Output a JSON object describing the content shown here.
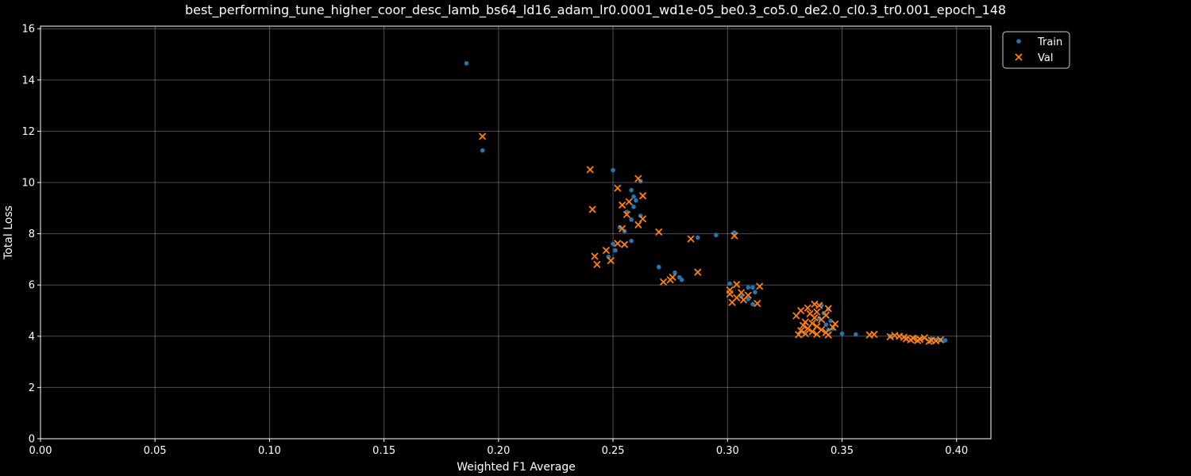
{
  "chart_data": {
    "type": "scatter",
    "title": "best_performing_tune_higher_coor_desc_lamb_bs64_ld16_adam_lr0.0001_wd1e-05_be0.3_co5.0_de2.0_cl0.3_tr0.001_epoch_148",
    "xlabel": "Weighted F1 Average",
    "ylabel": "Total Loss",
    "xlim": [
      0,
      0.415
    ],
    "ylim": [
      0,
      16.1
    ],
    "xticks": [
      "0.00",
      "0.05",
      "0.10",
      "0.15",
      "0.20",
      "0.25",
      "0.30",
      "0.35",
      "0.40"
    ],
    "yticks": [
      "0",
      "2",
      "4",
      "6",
      "8",
      "10",
      "12",
      "14",
      "16"
    ],
    "grid": true,
    "legend_position": "upper-right-outside",
    "series": [
      {
        "name": "Train",
        "marker": "circle",
        "color": "#1f77b4",
        "points": [
          [
            0.186,
            14.65
          ],
          [
            0.193,
            11.25
          ],
          [
            0.25,
            10.48
          ],
          [
            0.262,
            10.05
          ],
          [
            0.258,
            9.7
          ],
          [
            0.259,
            9.45
          ],
          [
            0.26,
            9.3
          ],
          [
            0.259,
            9.05
          ],
          [
            0.256,
            8.85
          ],
          [
            0.262,
            8.7
          ],
          [
            0.258,
            8.55
          ],
          [
            0.253,
            8.25
          ],
          [
            0.255,
            8.1
          ],
          [
            0.303,
            8.05
          ],
          [
            0.295,
            7.95
          ],
          [
            0.287,
            7.85
          ],
          [
            0.258,
            7.72
          ],
          [
            0.25,
            7.6
          ],
          [
            0.251,
            7.35
          ],
          [
            0.248,
            7.1
          ],
          [
            0.27,
            6.7
          ],
          [
            0.277,
            6.48
          ],
          [
            0.279,
            6.3
          ],
          [
            0.28,
            6.2
          ],
          [
            0.301,
            6.05
          ],
          [
            0.309,
            5.9
          ],
          [
            0.311,
            5.9
          ],
          [
            0.312,
            5.72
          ],
          [
            0.306,
            5.55
          ],
          [
            0.309,
            5.45
          ],
          [
            0.311,
            5.25
          ],
          [
            0.341,
            5.2
          ],
          [
            0.344,
            5.05
          ],
          [
            0.342,
            4.9
          ],
          [
            0.34,
            4.7
          ],
          [
            0.345,
            4.6
          ],
          [
            0.343,
            4.45
          ],
          [
            0.346,
            4.3
          ],
          [
            0.344,
            4.25
          ],
          [
            0.35,
            4.1
          ],
          [
            0.356,
            4.07
          ],
          [
            0.371,
            4.0
          ],
          [
            0.378,
            3.95
          ],
          [
            0.382,
            3.97
          ],
          [
            0.385,
            3.92
          ],
          [
            0.389,
            3.9
          ],
          [
            0.391,
            3.86
          ],
          [
            0.393,
            3.85
          ],
          [
            0.395,
            3.84
          ]
        ]
      },
      {
        "name": "Val",
        "marker": "x",
        "color": "#ff7f0e",
        "points": [
          [
            0.193,
            11.8
          ],
          [
            0.24,
            10.5
          ],
          [
            0.261,
            10.15
          ],
          [
            0.252,
            9.78
          ],
          [
            0.263,
            9.48
          ],
          [
            0.257,
            9.25
          ],
          [
            0.254,
            9.12
          ],
          [
            0.241,
            8.95
          ],
          [
            0.256,
            8.75
          ],
          [
            0.263,
            8.58
          ],
          [
            0.261,
            8.35
          ],
          [
            0.254,
            8.2
          ],
          [
            0.27,
            8.07
          ],
          [
            0.303,
            7.92
          ],
          [
            0.284,
            7.8
          ],
          [
            0.252,
            7.62
          ],
          [
            0.255,
            7.58
          ],
          [
            0.247,
            7.35
          ],
          [
            0.242,
            7.12
          ],
          [
            0.249,
            6.95
          ],
          [
            0.243,
            6.8
          ],
          [
            0.287,
            6.5
          ],
          [
            0.276,
            6.3
          ],
          [
            0.275,
            6.2
          ],
          [
            0.272,
            6.12
          ],
          [
            0.304,
            6.02
          ],
          [
            0.314,
            5.95
          ],
          [
            0.301,
            5.8
          ],
          [
            0.306,
            5.7
          ],
          [
            0.301,
            5.65
          ],
          [
            0.309,
            5.6
          ],
          [
            0.304,
            5.5
          ],
          [
            0.307,
            5.42
          ],
          [
            0.302,
            5.32
          ],
          [
            0.313,
            5.28
          ],
          [
            0.338,
            5.25
          ],
          [
            0.34,
            5.2
          ],
          [
            0.335,
            5.1
          ],
          [
            0.344,
            5.08
          ],
          [
            0.332,
            5.0
          ],
          [
            0.339,
            4.95
          ],
          [
            0.336,
            4.88
          ],
          [
            0.343,
            4.82
          ],
          [
            0.33,
            4.8
          ],
          [
            0.338,
            4.72
          ],
          [
            0.341,
            4.65
          ],
          [
            0.334,
            4.55
          ],
          [
            0.337,
            4.5
          ],
          [
            0.347,
            4.48
          ],
          [
            0.333,
            4.42
          ],
          [
            0.339,
            4.38
          ],
          [
            0.346,
            4.35
          ],
          [
            0.335,
            4.3
          ],
          [
            0.341,
            4.25
          ],
          [
            0.332,
            4.22
          ],
          [
            0.337,
            4.18
          ],
          [
            0.343,
            4.15
          ],
          [
            0.334,
            4.1
          ],
          [
            0.339,
            4.08
          ],
          [
            0.331,
            4.06
          ],
          [
            0.344,
            4.05
          ],
          [
            0.362,
            4.05
          ],
          [
            0.364,
            4.07
          ],
          [
            0.371,
            3.98
          ],
          [
            0.373,
            4.03
          ],
          [
            0.375,
            4.0
          ],
          [
            0.377,
            3.96
          ],
          [
            0.378,
            3.9
          ],
          [
            0.38,
            3.86
          ],
          [
            0.381,
            3.92
          ],
          [
            0.383,
            3.83
          ],
          [
            0.384,
            3.88
          ],
          [
            0.386,
            3.94
          ],
          [
            0.388,
            3.8
          ],
          [
            0.389,
            3.84
          ],
          [
            0.391,
            3.82
          ],
          [
            0.393,
            3.86
          ]
        ]
      }
    ]
  }
}
